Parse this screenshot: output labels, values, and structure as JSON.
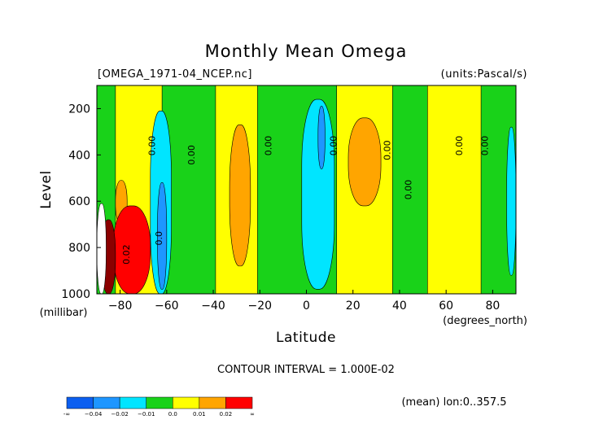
{
  "chart_data": {
    "type": "heatmap",
    "title": "Monthly Mean Omega",
    "file_label": "[OMEGA_1971-04_NCEP.nc]",
    "units_label": "(units:Pascal/s)",
    "xlabel": "Latitude",
    "xunit": "(degrees_north)",
    "ylabel": "Level",
    "yunit": "(millibar)",
    "xlim": [
      -90,
      90
    ],
    "ylim": [
      1000,
      100
    ],
    "x_ticks": [
      -80,
      -60,
      -40,
      -20,
      0,
      20,
      40,
      60,
      80
    ],
    "x_tick_labels": [
      "−80",
      "−60",
      "−40",
      "−20",
      "0",
      "20",
      "40",
      "60",
      "80"
    ],
    "y_ticks": [
      200,
      400,
      600,
      800,
      1000
    ],
    "y_tick_labels": [
      "200",
      "400",
      "600",
      "800",
      "1000"
    ],
    "contour_interval_text": "CONTOUR INTERVAL = 1.000E-02",
    "mean_text": "(mean) lon:0..357.5",
    "colorbar": {
      "colors": [
        "#0c5ff0",
        "#1e96ff",
        "#00e5ff",
        "#19d219",
        "#ffff00",
        "#ffa500",
        "#ff0000"
      ],
      "labels": [
        "-∞",
        "−0.04",
        "−0.02",
        "−0.01",
        "0.0",
        "0.01",
        "0.02",
        "∞"
      ]
    },
    "contour_labels": [
      {
        "text": "0.00",
        "lat": -65,
        "lev": 360
      },
      {
        "text": "0.00",
        "lat": -48,
        "lev": 400
      },
      {
        "text": "0.00",
        "lat": -15,
        "lev": 360
      },
      {
        "text": "0.00",
        "lat": 13,
        "lev": 360
      },
      {
        "text": "0.00",
        "lat": 36,
        "lev": 380
      },
      {
        "text": "0.00",
        "lat": 45,
        "lev": 550
      },
      {
        "text": "0.00",
        "lat": 67,
        "lev": 360
      },
      {
        "text": "0.00",
        "lat": 78,
        "lev": 360
      },
      {
        "text": "0.02",
        "lat": -76,
        "lev": 830
      },
      {
        "text": "0.0",
        "lat": -62,
        "lev": 760
      }
    ],
    "regions": [
      {
        "category": 0.0,
        "lat_min": -90,
        "lat_max": 90
      },
      {
        "category": 0.01,
        "lat_min": -82,
        "lat_max": -62,
        "lev_min": 100,
        "lev_max": 1000
      },
      {
        "category": 0.01,
        "lat_min": -39,
        "lat_max": -21,
        "lev_min": 100,
        "lev_max": 1000
      },
      {
        "category": 0.01,
        "lat_min": 13,
        "lat_max": 37,
        "lev_min": 100,
        "lev_max": 1000
      },
      {
        "category": 0.01,
        "lat_min": 52,
        "lat_max": 75,
        "lev_min": 100,
        "lev_max": 1000
      },
      {
        "category": 0.02,
        "lat_min": -33,
        "lat_max": -24,
        "lev_min": 270,
        "lev_max": 880
      },
      {
        "category": 0.02,
        "lat_min": 18,
        "lat_max": 32,
        "lev_min": 240,
        "lev_max": 620
      },
      {
        "category": 0.02,
        "lat_min": -82,
        "lat_max": -77,
        "lev_min": 510,
        "lev_max": 700
      },
      {
        "category": -0.01,
        "lat_min": -67,
        "lat_max": -58,
        "lev_min": 210,
        "lev_max": 1000
      },
      {
        "category": -0.01,
        "lat_min": -2,
        "lat_max": 12,
        "lev_min": 160,
        "lev_max": 980
      },
      {
        "category": -0.01,
        "lat_min": 86,
        "lat_max": 90,
        "lev_min": 280,
        "lev_max": 920
      },
      {
        "category": -0.02,
        "lat_min": -64,
        "lat_max": -60,
        "lev_min": 520,
        "lev_max": 980
      },
      {
        "category": -0.02,
        "lat_min": 5,
        "lat_max": 8,
        "lev_min": 190,
        "lev_max": 460
      },
      {
        "category": 0.03,
        "lat_min": -83,
        "lat_max": -67,
        "lev_min": 620,
        "lev_max": 1000
      },
      {
        "category": 0.04,
        "lat_min": -88,
        "lat_max": -82,
        "lev_min": 680,
        "lev_max": 1000
      },
      {
        "category": "missing",
        "lat_min": -90,
        "lat_max": -86,
        "lev_min": 610,
        "lev_max": 1000
      }
    ]
  }
}
